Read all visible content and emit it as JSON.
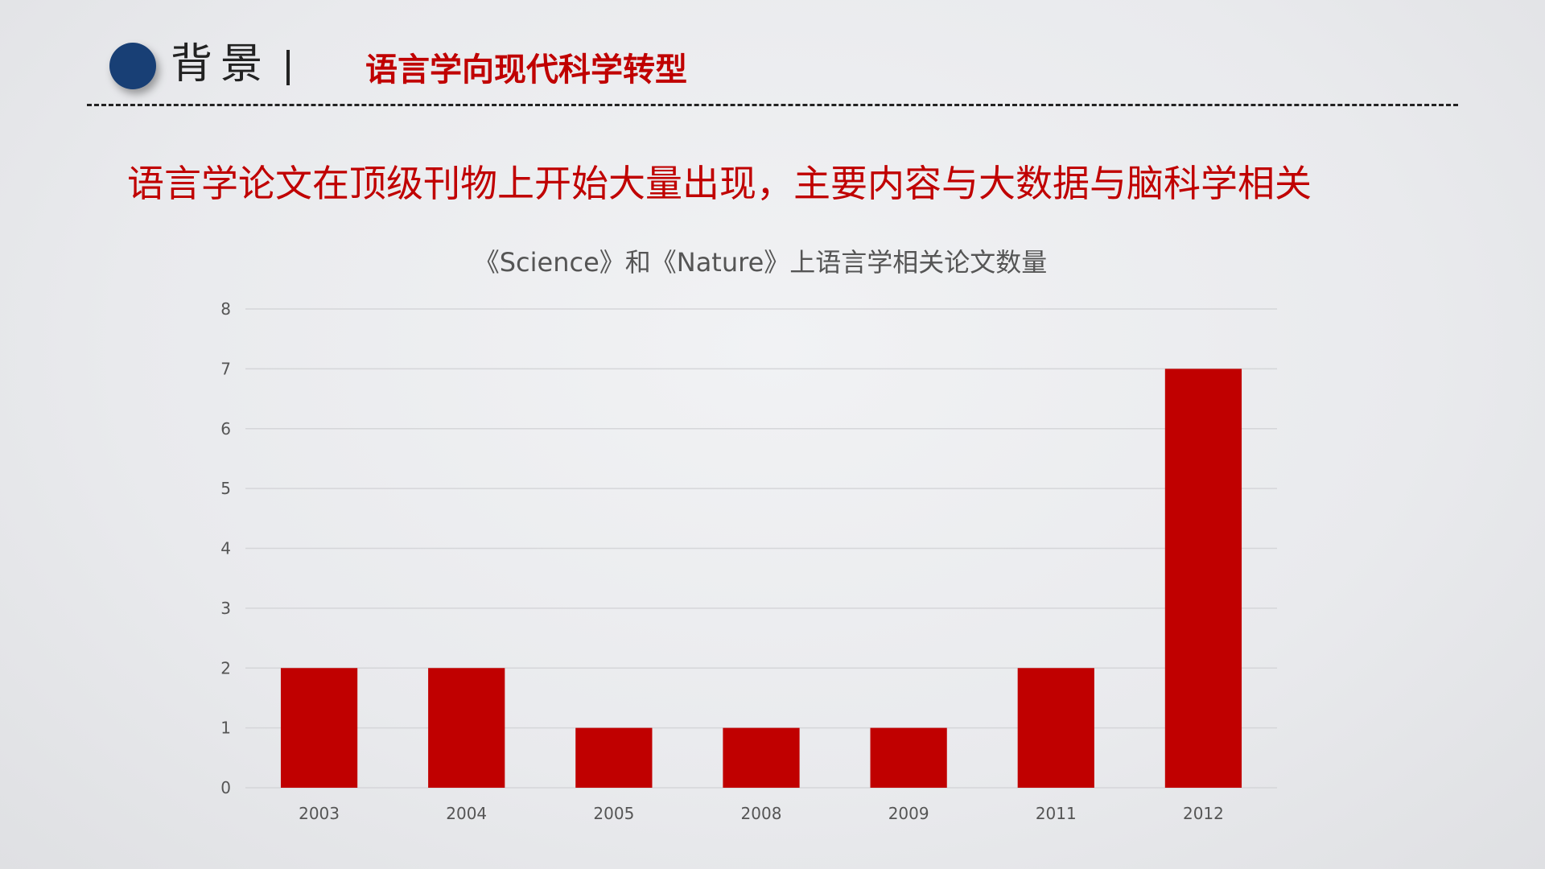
{
  "header": {
    "title": "背景",
    "subtitle": "语言学向现代科学转型"
  },
  "headline": "语言学论文在顶级刊物上开始大量出现，主要内容与大数据与脑科学相关",
  "colors": {
    "accent": "#c00000",
    "dot": "#183f75",
    "grid": "#d5d6d9",
    "text": "#555555"
  },
  "chart_data": {
    "type": "bar",
    "title": "《Science》和《Nature》上语言学相关论文数量",
    "categories": [
      "2003",
      "2004",
      "2005",
      "2008",
      "2009",
      "2011",
      "2012"
    ],
    "values": [
      2,
      2,
      1,
      1,
      1,
      2,
      7
    ],
    "ylim": [
      0,
      8
    ],
    "yticks": [
      0,
      1,
      2,
      3,
      4,
      5,
      6,
      7,
      8
    ],
    "xlabel": "",
    "ylabel": "",
    "grid": true,
    "legend": "none"
  }
}
